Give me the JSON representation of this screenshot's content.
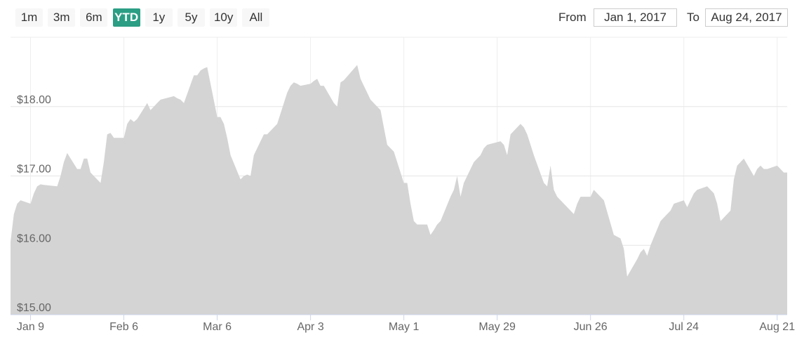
{
  "range_selector": {
    "buttons": [
      "1m",
      "3m",
      "6m",
      "YTD",
      "1y",
      "5y",
      "10y",
      "All"
    ],
    "selected": 3,
    "from_label": "From",
    "from": "Jan 1, 2017",
    "to_label": "To",
    "to": "Aug 24, 2017"
  },
  "chart_data": {
    "type": "area",
    "color": "#d4d4d4",
    "grid": true,
    "xlim": [
      "Jan 3",
      "Aug 24"
    ],
    "ylim": [
      15,
      19
    ],
    "yticks": [
      {
        "value": 15,
        "label": "$15.00"
      },
      {
        "value": 16,
        "label": "$16.00"
      },
      {
        "value": 17,
        "label": "$17.00"
      },
      {
        "value": 18,
        "label": "$18.00"
      }
    ],
    "xticks": [
      "Jan 9",
      "Feb 6",
      "Mar 6",
      "Apr 3",
      "May 1",
      "May 29",
      "Jun 26",
      "Jul 24",
      "Aug 21"
    ],
    "x": [
      "Jan 3",
      "Jan 4",
      "Jan 5",
      "Jan 6",
      "Jan 9",
      "Jan 10",
      "Jan 11",
      "Jan 12",
      "Jan 13",
      "Jan 17",
      "Jan 18",
      "Jan 19",
      "Jan 20",
      "Jan 23",
      "Jan 24",
      "Jan 25",
      "Jan 26",
      "Jan 27",
      "Jan 30",
      "Jan 31",
      "Feb 1",
      "Feb 2",
      "Feb 3",
      "Feb 6",
      "Feb 7",
      "Feb 8",
      "Feb 9",
      "Feb 10",
      "Feb 13",
      "Feb 14",
      "Feb 15",
      "Feb 16",
      "Feb 17",
      "Feb 21",
      "Feb 22",
      "Feb 23",
      "Feb 24",
      "Feb 27",
      "Feb 28",
      "Mar 1",
      "Mar 2",
      "Mar 3",
      "Mar 6",
      "Mar 7",
      "Mar 8",
      "Mar 9",
      "Mar 10",
      "Mar 13",
      "Mar 14",
      "Mar 15",
      "Mar 16",
      "Mar 17",
      "Mar 20",
      "Mar 21",
      "Mar 22",
      "Mar 23",
      "Mar 24",
      "Mar 27",
      "Mar 28",
      "Mar 29",
      "Mar 30",
      "Mar 31",
      "Apr 3",
      "Apr 4",
      "Apr 5",
      "Apr 6",
      "Apr 7",
      "Apr 10",
      "Apr 11",
      "Apr 12",
      "Apr 13",
      "Apr 17",
      "Apr 18",
      "Apr 19",
      "Apr 20",
      "Apr 21",
      "Apr 24",
      "Apr 25",
      "Apr 26",
      "Apr 27",
      "Apr 28",
      "May 1",
      "May 2",
      "May 3",
      "May 4",
      "May 5",
      "May 8",
      "May 9",
      "May 10",
      "May 11",
      "May 12",
      "May 15",
      "May 16",
      "May 17",
      "May 18",
      "May 19",
      "May 22",
      "May 23",
      "May 24",
      "May 25",
      "May 26",
      "May 30",
      "May 31",
      "Jun 1",
      "Jun 2",
      "Jun 5",
      "Jun 6",
      "Jun 7",
      "Jun 8",
      "Jun 9",
      "Jun 12",
      "Jun 13",
      "Jun 14",
      "Jun 15",
      "Jun 16",
      "Jun 19",
      "Jun 20",
      "Jun 21",
      "Jun 22",
      "Jun 23",
      "Jun 26",
      "Jun 27",
      "Jun 28",
      "Jun 29",
      "Jun 30",
      "Jul 3",
      "Jul 5",
      "Jul 6",
      "Jul 7",
      "Jul 10",
      "Jul 11",
      "Jul 12",
      "Jul 13",
      "Jul 14",
      "Jul 17",
      "Jul 18",
      "Jul 19",
      "Jul 20",
      "Jul 21",
      "Jul 24",
      "Jul 25",
      "Jul 26",
      "Jul 27",
      "Jul 28",
      "Jul 31",
      "Aug 1",
      "Aug 2",
      "Aug 3",
      "Aug 4",
      "Aug 7",
      "Aug 8",
      "Aug 9",
      "Aug 10",
      "Aug 11",
      "Aug 14",
      "Aug 15",
      "Aug 16",
      "Aug 17",
      "Aug 18",
      "Aug 21",
      "Aug 22",
      "Aug 23",
      "Aug 24"
    ],
    "values": [
      16.05,
      16.45,
      16.6,
      16.65,
      16.6,
      16.75,
      16.85,
      16.88,
      16.87,
      16.85,
      17.0,
      17.2,
      17.33,
      17.1,
      17.1,
      17.25,
      17.25,
      17.05,
      16.9,
      17.2,
      17.6,
      17.62,
      17.55,
      17.55,
      17.75,
      17.82,
      17.78,
      17.82,
      18.05,
      17.95,
      18.0,
      18.05,
      18.1,
      18.15,
      18.12,
      18.1,
      18.05,
      18.45,
      18.45,
      18.52,
      18.55,
      18.57,
      17.85,
      17.85,
      17.75,
      17.55,
      17.3,
      16.95,
      17.0,
      17.02,
      17.0,
      17.3,
      17.6,
      17.6,
      17.65,
      17.7,
      17.75,
      18.2,
      18.3,
      18.35,
      18.33,
      18.3,
      18.33,
      18.37,
      18.4,
      18.3,
      18.3,
      18.05,
      18.0,
      18.35,
      18.38,
      18.6,
      18.4,
      18.3,
      18.2,
      18.1,
      17.95,
      17.7,
      17.45,
      17.4,
      17.35,
      16.9,
      16.9,
      16.6,
      16.35,
      16.3,
      16.3,
      16.15,
      16.22,
      16.3,
      16.35,
      16.7,
      16.8,
      17.0,
      16.7,
      16.9,
      17.2,
      17.25,
      17.3,
      17.4,
      17.45,
      17.5,
      17.45,
      17.3,
      17.6,
      17.75,
      17.7,
      17.6,
      17.45,
      17.3,
      16.9,
      16.85,
      17.15,
      16.8,
      16.7,
      16.55,
      16.5,
      16.45,
      16.6,
      16.7,
      16.7,
      16.8,
      16.75,
      16.7,
      16.65,
      16.15,
      16.1,
      15.95,
      15.55,
      15.8,
      15.9,
      15.95,
      15.85,
      16.0,
      16.35,
      16.4,
      16.45,
      16.5,
      16.6,
      16.65,
      16.55,
      16.65,
      16.75,
      16.8,
      16.85,
      16.8,
      16.75,
      16.6,
      16.35,
      16.5,
      16.95,
      17.15,
      17.2,
      17.25,
      17.0,
      17.1,
      17.15,
      17.1,
      17.1,
      17.15,
      17.1,
      17.05,
      17.05
    ]
  }
}
